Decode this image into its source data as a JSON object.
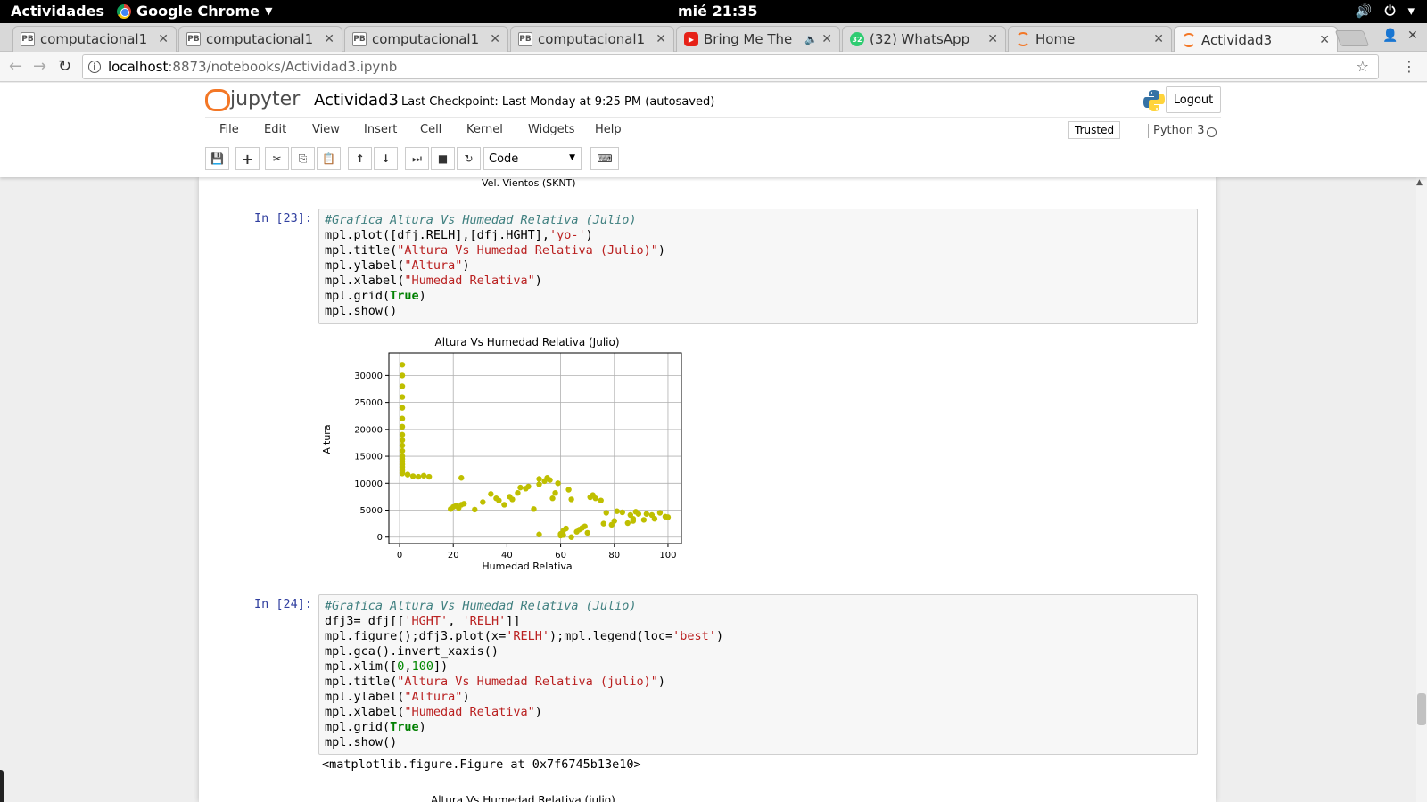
{
  "system": {
    "activities": "Actividades",
    "app_name": "Google Chrome",
    "clock": "mié 21:35"
  },
  "tabs": [
    {
      "label": "computacional1",
      "icon": "pb"
    },
    {
      "label": "computacional1",
      "icon": "pb"
    },
    {
      "label": "computacional1",
      "icon": "pb"
    },
    {
      "label": "computacional1",
      "icon": "pb"
    },
    {
      "label": "Bring Me The",
      "icon": "yt"
    },
    {
      "label": "(32) WhatsApp",
      "icon": "wa",
      "badge": "32"
    },
    {
      "label": "Home",
      "icon": "jp"
    },
    {
      "label": "Actividad3",
      "icon": "jp"
    }
  ],
  "browser": {
    "url_host": "localhost",
    "url_path": ":8873/notebooks/Actividad3.ipynb"
  },
  "jupyter": {
    "logo_text": "jupyter",
    "notebook_name": "Actividad3",
    "checkpoint": "Last Checkpoint: Last Monday at 9:25 PM (autosaved)",
    "logout": "Logout",
    "menu": [
      "File",
      "Edit",
      "View",
      "Insert",
      "Cell",
      "Kernel",
      "Widgets",
      "Help"
    ],
    "trusted": "Trusted",
    "kernel": "Python 3",
    "cell_type": "Code"
  },
  "notebook": {
    "prev_output_label": "Vel. Vientos (SKNT)",
    "cell23": {
      "prompt": "In [23]:",
      "lines": [
        [
          {
            "t": "#Grafica Altura Vs Humedad Relativa (Julio)",
            "c": "comment"
          }
        ],
        [
          {
            "t": "mpl.plot([dfj.RELH],[dfj.HGHT],",
            "c": ""
          },
          {
            "t": "'yo-'",
            "c": "string"
          },
          {
            "t": ")",
            "c": ""
          }
        ],
        [
          {
            "t": "mpl.title(",
            "c": ""
          },
          {
            "t": "\"Altura Vs Humedad Relativa (Julio)\"",
            "c": "string"
          },
          {
            "t": ")",
            "c": ""
          }
        ],
        [
          {
            "t": "mpl.ylabel(",
            "c": ""
          },
          {
            "t": "\"Altura\"",
            "c": "string"
          },
          {
            "t": ")",
            "c": ""
          }
        ],
        [
          {
            "t": "mpl.xlabel(",
            "c": ""
          },
          {
            "t": "\"Humedad Relativa\"",
            "c": "string"
          },
          {
            "t": ")",
            "c": ""
          }
        ],
        [
          {
            "t": "mpl.grid(",
            "c": ""
          },
          {
            "t": "True",
            "c": "keyword"
          },
          {
            "t": ")",
            "c": ""
          }
        ],
        [
          {
            "t": "mpl.show()",
            "c": ""
          }
        ]
      ]
    },
    "cell24": {
      "prompt": "In [24]:",
      "lines": [
        [
          {
            "t": "#Grafica Altura Vs Humedad Relativa (Julio)",
            "c": "comment"
          }
        ],
        [
          {
            "t": "dfj3= dfj[[",
            "c": ""
          },
          {
            "t": "'HGHT'",
            "c": "string"
          },
          {
            "t": ", ",
            "c": ""
          },
          {
            "t": "'RELH'",
            "c": "string"
          },
          {
            "t": "]]",
            "c": ""
          }
        ],
        [
          {
            "t": "mpl.figure();dfj3.plot(x=",
            "c": ""
          },
          {
            "t": "'RELH'",
            "c": "string"
          },
          {
            "t": ");mpl.legend(loc=",
            "c": ""
          },
          {
            "t": "'best'",
            "c": "string"
          },
          {
            "t": ")",
            "c": ""
          }
        ],
        [
          {
            "t": "mpl.gca().invert_xaxis()",
            "c": ""
          }
        ],
        [
          {
            "t": "mpl.xlim([",
            "c": ""
          },
          {
            "t": "0",
            "c": "number"
          },
          {
            "t": ",",
            "c": ""
          },
          {
            "t": "100",
            "c": "number"
          },
          {
            "t": "])",
            "c": ""
          }
        ],
        [
          {
            "t": "mpl.title(",
            "c": ""
          },
          {
            "t": "\"Altura Vs Humedad Relativa (julio)\"",
            "c": "string"
          },
          {
            "t": ")",
            "c": ""
          }
        ],
        [
          {
            "t": "mpl.ylabel(",
            "c": ""
          },
          {
            "t": "\"Altura\"",
            "c": "string"
          },
          {
            "t": ")",
            "c": ""
          }
        ],
        [
          {
            "t": "mpl.xlabel(",
            "c": ""
          },
          {
            "t": "\"Humedad Relativa\"",
            "c": "string"
          },
          {
            "t": ")",
            "c": ""
          }
        ],
        [
          {
            "t": "mpl.grid(",
            "c": ""
          },
          {
            "t": "True",
            "c": "keyword"
          },
          {
            "t": ")",
            "c": ""
          }
        ],
        [
          {
            "t": "mpl.show()",
            "c": ""
          }
        ]
      ],
      "output": "<matplotlib.figure.Figure at 0x7f6745b13e10>",
      "next_chart_title": "Altura Vs Humedad Relativa (julio)"
    }
  },
  "chart_data": {
    "type": "scatter",
    "title": "Altura Vs Humedad Relativa (Julio)",
    "xlabel": "Humedad Relativa",
    "ylabel": "Altura",
    "xlim": [
      -4,
      105
    ],
    "ylim": [
      -1200,
      34200
    ],
    "xticks": [
      0,
      20,
      40,
      60,
      80,
      100
    ],
    "yticks": [
      0,
      5000,
      10000,
      15000,
      20000,
      25000,
      30000
    ],
    "grid": true,
    "marker_color": "#bfbf00",
    "x": [
      1,
      1,
      1,
      1,
      1,
      1,
      1,
      1,
      1,
      1,
      1,
      1,
      1,
      1,
      1,
      1,
      1,
      1,
      1,
      3,
      5,
      7,
      9,
      11,
      19,
      20,
      21,
      22,
      23,
      24,
      23,
      28,
      31,
      34,
      36,
      37,
      39,
      41,
      42,
      44,
      45,
      47,
      48,
      50,
      52,
      52,
      54,
      55,
      56,
      57,
      58,
      59,
      60,
      61,
      62,
      63,
      64,
      64,
      66,
      67,
      68,
      69,
      70,
      71,
      72,
      73,
      75,
      76,
      77,
      79,
      80,
      81,
      83,
      85,
      86,
      87,
      87,
      88,
      89,
      91,
      92,
      94,
      95,
      97,
      99,
      100,
      60,
      61,
      52
    ],
    "y": [
      32000,
      30000,
      28000,
      26000,
      24000,
      22000,
      20500,
      19000,
      18000,
      17000,
      16000,
      15000,
      14500,
      14000,
      13500,
      13000,
      12500,
      12000,
      11800,
      11600,
      11300,
      11200,
      11400,
      11200,
      5200,
      5600,
      5800,
      5400,
      6000,
      6200,
      11000,
      5100,
      6500,
      8000,
      7200,
      6800,
      6000,
      7500,
      7000,
      8200,
      9200,
      9000,
      9400,
      5200,
      9800,
      10800,
      10400,
      11000,
      10600,
      7200,
      8200,
      10000,
      600,
      1200,
      1600,
      8800,
      7000,
      0,
      1000,
      1400,
      1700,
      2000,
      800,
      7400,
      7800,
      7200,
      6800,
      2500,
      4500,
      2300,
      3000,
      4800,
      4600,
      2600,
      4100,
      3400,
      3000,
      4700,
      4300,
      3200,
      4300,
      4100,
      3400,
      4500,
      3800,
      3700,
      300,
      400,
      500
    ]
  }
}
